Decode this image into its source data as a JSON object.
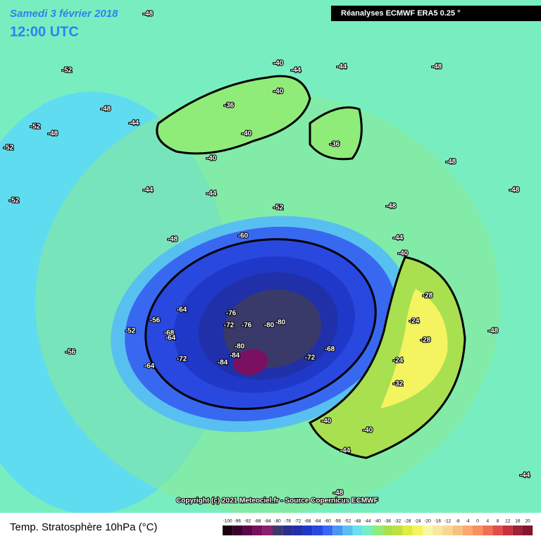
{
  "header": {
    "date": "Samedi 3 février 2018",
    "time": "12:00 UTC",
    "source": "Réanalyses ECMWF ERA5 0.25 °"
  },
  "copyright": "Copyright (c) 2021 Meteociel.fr - Source Copernicus ECMWF",
  "footer": {
    "title": "Temp. Stratosphère 10hPa (°C)",
    "scale": {
      "ticks": [
        -100,
        -96,
        -92,
        -88,
        -84,
        -80,
        -76,
        -72,
        -68,
        -64,
        -60,
        -56,
        -52,
        -48,
        -44,
        -40,
        -36,
        -32,
        -28,
        -24,
        -20,
        -16,
        -12,
        -8,
        -4,
        0,
        4,
        8,
        12,
        16,
        20
      ],
      "colors": [
        "#1a0010",
        "#3a0030",
        "#5a0848",
        "#7a1060",
        "#8a2070",
        "#3a3a6a",
        "#2c2c8c",
        "#2030a8",
        "#2038c8",
        "#2848e0",
        "#3868f0",
        "#4898f0",
        "#58c0f0",
        "#68e0f0",
        "#78eec0",
        "#90ec78",
        "#a8e050",
        "#c0e040",
        "#e0ec40",
        "#f4f460",
        "#f8f8a8",
        "#f8e8a0",
        "#f8d890",
        "#f8c080",
        "#f8a870",
        "#f89060",
        "#f07050",
        "#e05048",
        "#c83040",
        "#a02038",
        "#801830"
      ]
    }
  },
  "map": {
    "labels": [
      -48,
      -48,
      -44,
      -40,
      -40,
      -36,
      -40,
      -40,
      -36,
      -44,
      -44,
      -48,
      -52,
      -52,
      -52,
      -52,
      -48,
      -44,
      -44,
      -52,
      -60,
      -64,
      -68,
      -64,
      -76,
      -72,
      -76,
      -80,
      -80,
      -84,
      -80,
      -84,
      -72,
      -68,
      -64,
      -72,
      -56,
      -56,
      -52,
      -48,
      -48,
      -44,
      -40,
      -28,
      -24,
      -28,
      -24,
      -32,
      -40,
      -40,
      -44,
      -48,
      -48,
      -48,
      -44,
      -48
    ]
  }
}
